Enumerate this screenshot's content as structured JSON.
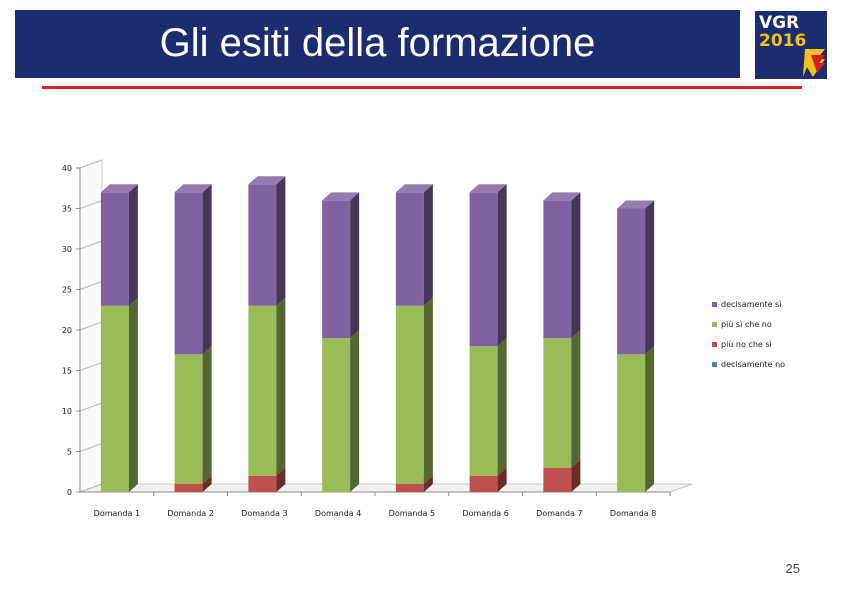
{
  "header": {
    "title": "Gli esiti della formazione"
  },
  "logo": {
    "line1": "VGR",
    "line2": "2016"
  },
  "page_number": "25",
  "colors": {
    "title_bar": "#1c2c6e",
    "accent_line": "#d71f26"
  },
  "chart_data": {
    "type": "bar",
    "stacked": true,
    "three_d": true,
    "categories": [
      "Domanda 1",
      "Domanda 2",
      "Domanda 3",
      "Domanda 4",
      "Domanda 5",
      "Domanda 6",
      "Domanda 7",
      "Domanda 8"
    ],
    "series": [
      {
        "name": "decisamente no",
        "color": "#4f81bd",
        "values": [
          0,
          0,
          0,
          0,
          0,
          0,
          0,
          0
        ]
      },
      {
        "name": "più no che sì",
        "color": "#c0504d",
        "values": [
          0,
          1,
          2,
          0,
          1,
          2,
          3,
          0
        ]
      },
      {
        "name": "più sì che no",
        "color": "#9bbb59",
        "values": [
          23,
          16,
          21,
          19,
          22,
          16,
          16,
          17
        ]
      },
      {
        "name": "decisamente sì",
        "color": "#8064a2",
        "values": [
          14,
          20,
          15,
          17,
          14,
          19,
          17,
          18
        ]
      }
    ],
    "ylim": [
      0,
      40
    ],
    "yticks": [
      "0",
      "5",
      "10",
      "15",
      "20",
      "25",
      "30",
      "35",
      "40"
    ],
    "legend_order": [
      "decisamente sì",
      "più sì che no",
      "più no che sì",
      "decisamente no"
    ],
    "legend_position": "right"
  }
}
